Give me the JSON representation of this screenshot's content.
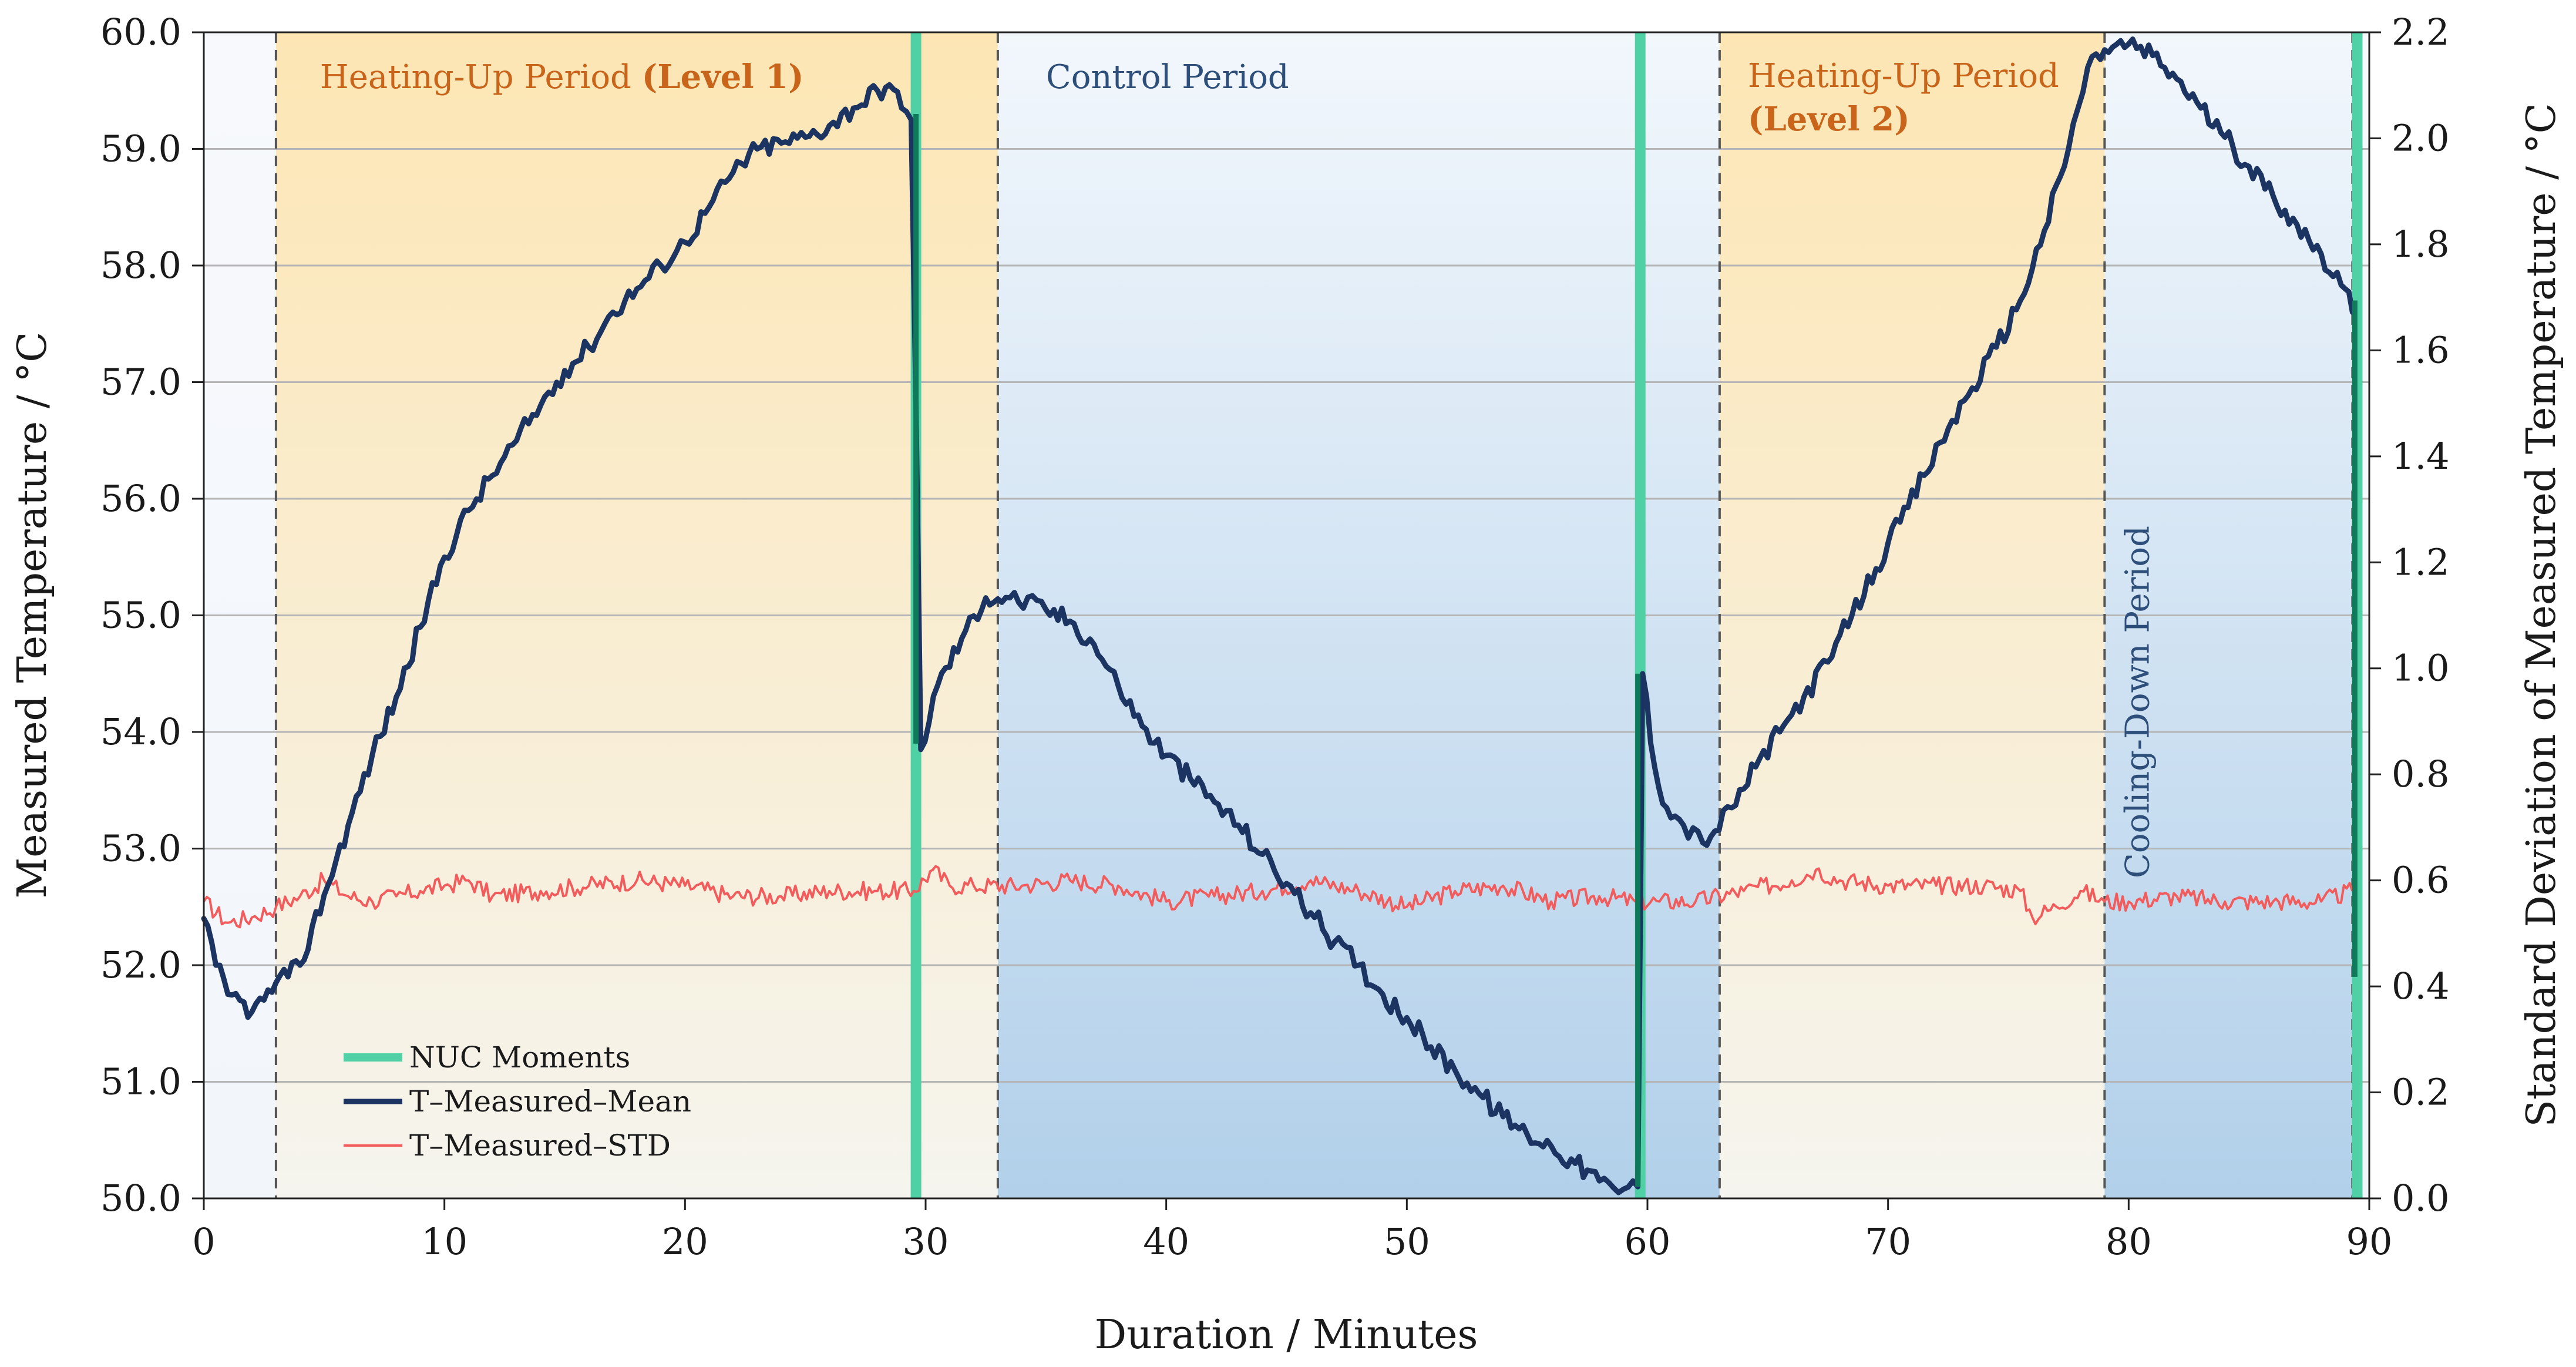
{
  "chart_data": {
    "type": "line",
    "title": "",
    "xlabel": "Duration / Minutes",
    "ylabel": "Measured Temperature / °C",
    "y2label": "Standard Deviation of Measured Temperature / °C",
    "xlim": [
      0,
      90
    ],
    "ylim": [
      50.0,
      60.0
    ],
    "y2lim": [
      0.0,
      2.2
    ],
    "x_ticks": [
      0,
      10,
      20,
      30,
      40,
      50,
      60,
      70,
      80,
      90
    ],
    "x_tick_labels": [
      "0",
      "10",
      "20",
      "30",
      "40",
      "50",
      "60",
      "70",
      "80",
      "90"
    ],
    "y_ticks": [
      50,
      51,
      52,
      53,
      54,
      55,
      56,
      57,
      58,
      59,
      60
    ],
    "y_tick_labels": [
      "50.0",
      "51.0",
      "52.0",
      "53.0",
      "54.0",
      "55.0",
      "56.0",
      "57.0",
      "58.0",
      "59.0",
      "60.0"
    ],
    "y2_ticks": [
      0,
      0.2,
      0.4,
      0.6,
      0.8,
      1.0,
      1.2,
      1.4,
      1.6,
      1.8,
      2.0,
      2.2
    ],
    "y2_tick_labels": [
      "0.0",
      "0.2",
      "0.4",
      "0.6",
      "0.8",
      "1.0",
      "1.2",
      "1.4",
      "1.6",
      "1.8",
      "2.0",
      "2.2"
    ],
    "grid": "horizontal",
    "legend_position": "bottom-left",
    "colors": {
      "mean": "#1c3461",
      "std": "#f25c5c",
      "nuc": "#4fd1a5",
      "nuc_dark": "#0f7a5a",
      "heating_top": "#fde6b4",
      "heating_bottom": "#f5f4ee",
      "control_top": "#f2f7fc",
      "control_bottom": "#b2d0ea",
      "heating_text": "#c8651b",
      "control_text": "#2d4f7a",
      "grid": "#b5b5b5",
      "divider": "#555555"
    },
    "regions": [
      {
        "type": "heating",
        "x_start": 3.0,
        "x_end": 33.0,
        "label": "Heating-Up Period ",
        "label_bold": "(Level 1)"
      },
      {
        "type": "control",
        "x_start": 33.0,
        "x_end": 63.0,
        "label": "Control Period",
        "label_bold": ""
      },
      {
        "type": "heating",
        "x_start": 63.0,
        "x_end": 79.0,
        "label": "Heating-Up Period",
        "label_bold": "(Level 2)"
      },
      {
        "type": "control",
        "x_start": 79.0,
        "x_end": 89.3,
        "label": "Cooling-Down Period",
        "label_bold": ""
      }
    ],
    "dividers": [
      3.0,
      33.0,
      63.0,
      79.0,
      89.3
    ],
    "nuc_moments": [
      29.6,
      59.7,
      89.5
    ],
    "legend": [
      {
        "name": "NUC Moments",
        "type": "nuc"
      },
      {
        "name": "T–Measured–Mean",
        "type": "mean"
      },
      {
        "name": "T–Measured–STD",
        "type": "std"
      }
    ],
    "series": [
      {
        "name": "T–Measured–Mean",
        "axis": "left",
        "x": [
          0,
          0.5,
          1,
          1.5,
          2,
          2.5,
          3,
          3.5,
          4,
          5,
          6,
          7,
          8,
          9,
          10,
          11,
          12,
          13,
          14,
          15,
          16,
          17,
          18,
          19,
          20,
          21,
          22,
          23,
          24,
          25,
          26,
          27,
          28,
          28.5,
          29,
          29.4,
          29.6,
          29.8,
          30.5,
          31.5,
          32.5,
          33.5,
          35,
          36,
          37,
          38,
          39,
          40,
          41,
          42,
          43,
          44,
          45,
          46,
          47,
          48,
          49,
          50,
          51,
          52,
          53,
          54,
          55,
          56,
          57,
          58,
          58.8,
          59.4,
          59.6,
          59.8,
          60.3,
          60.8,
          61.5,
          62.3,
          62.8,
          63.5,
          64.5,
          65.5,
          66.5,
          67.5,
          68.5,
          69.5,
          70.5,
          71.5,
          72.5,
          73.5,
          74.5,
          75.5,
          76.5,
          77.5,
          78.3,
          79,
          80,
          81,
          82,
          83,
          84,
          85,
          86,
          87,
          88,
          89,
          89.3
        ],
        "values": [
          52.4,
          52.0,
          51.75,
          51.7,
          51.6,
          51.7,
          51.85,
          51.9,
          52.0,
          52.6,
          53.2,
          53.8,
          54.3,
          54.9,
          55.5,
          55.9,
          56.2,
          56.5,
          56.8,
          57.1,
          57.3,
          57.6,
          57.8,
          58.0,
          58.2,
          58.5,
          58.8,
          59.0,
          59.05,
          59.1,
          59.2,
          59.35,
          59.5,
          59.55,
          59.35,
          59.25,
          56.8,
          53.85,
          54.4,
          54.8,
          55.15,
          55.15,
          55.05,
          54.95,
          54.75,
          54.4,
          54.05,
          53.8,
          53.6,
          53.4,
          53.2,
          52.95,
          52.7,
          52.45,
          52.2,
          52.0,
          51.75,
          51.55,
          51.3,
          51.1,
          50.9,
          50.7,
          50.55,
          50.45,
          50.3,
          50.15,
          50.05,
          50.15,
          50.1,
          54.5,
          53.7,
          53.35,
          53.2,
          53.05,
          53.15,
          53.35,
          53.7,
          54.0,
          54.3,
          54.6,
          55.0,
          55.4,
          55.8,
          56.2,
          56.6,
          56.95,
          57.3,
          57.7,
          58.3,
          59.0,
          59.7,
          59.85,
          59.9,
          59.8,
          59.6,
          59.35,
          59.1,
          58.85,
          58.6,
          58.35,
          58.1,
          57.8,
          57.6
        ]
      },
      {
        "name": "T–Measured–STD",
        "axis": "right",
        "x": [
          0,
          1,
          2,
          3,
          4,
          5,
          6,
          7,
          8,
          9,
          10,
          11,
          12,
          14,
          16,
          18,
          20,
          22,
          24,
          26,
          28,
          29.5,
          30.3,
          31,
          32,
          34,
          36,
          38,
          40,
          42,
          44,
          46,
          48,
          50,
          52,
          54,
          56,
          58,
          59.5,
          60.5,
          62,
          64,
          66,
          67,
          68,
          70,
          72,
          74,
          75.5,
          76,
          77,
          78,
          79,
          80,
          82,
          84,
          86,
          88,
          89.3
        ],
        "values": [
          0.56,
          0.52,
          0.53,
          0.55,
          0.57,
          0.6,
          0.57,
          0.56,
          0.57,
          0.58,
          0.59,
          0.6,
          0.57,
          0.58,
          0.59,
          0.6,
          0.59,
          0.57,
          0.57,
          0.58,
          0.58,
          0.58,
          0.62,
          0.59,
          0.59,
          0.59,
          0.6,
          0.59,
          0.56,
          0.57,
          0.58,
          0.6,
          0.58,
          0.55,
          0.58,
          0.59,
          0.56,
          0.57,
          0.56,
          0.56,
          0.56,
          0.58,
          0.6,
          0.62,
          0.6,
          0.59,
          0.59,
          0.59,
          0.58,
          0.53,
          0.55,
          0.58,
          0.56,
          0.56,
          0.57,
          0.56,
          0.56,
          0.56,
          0.58
        ]
      }
    ]
  }
}
